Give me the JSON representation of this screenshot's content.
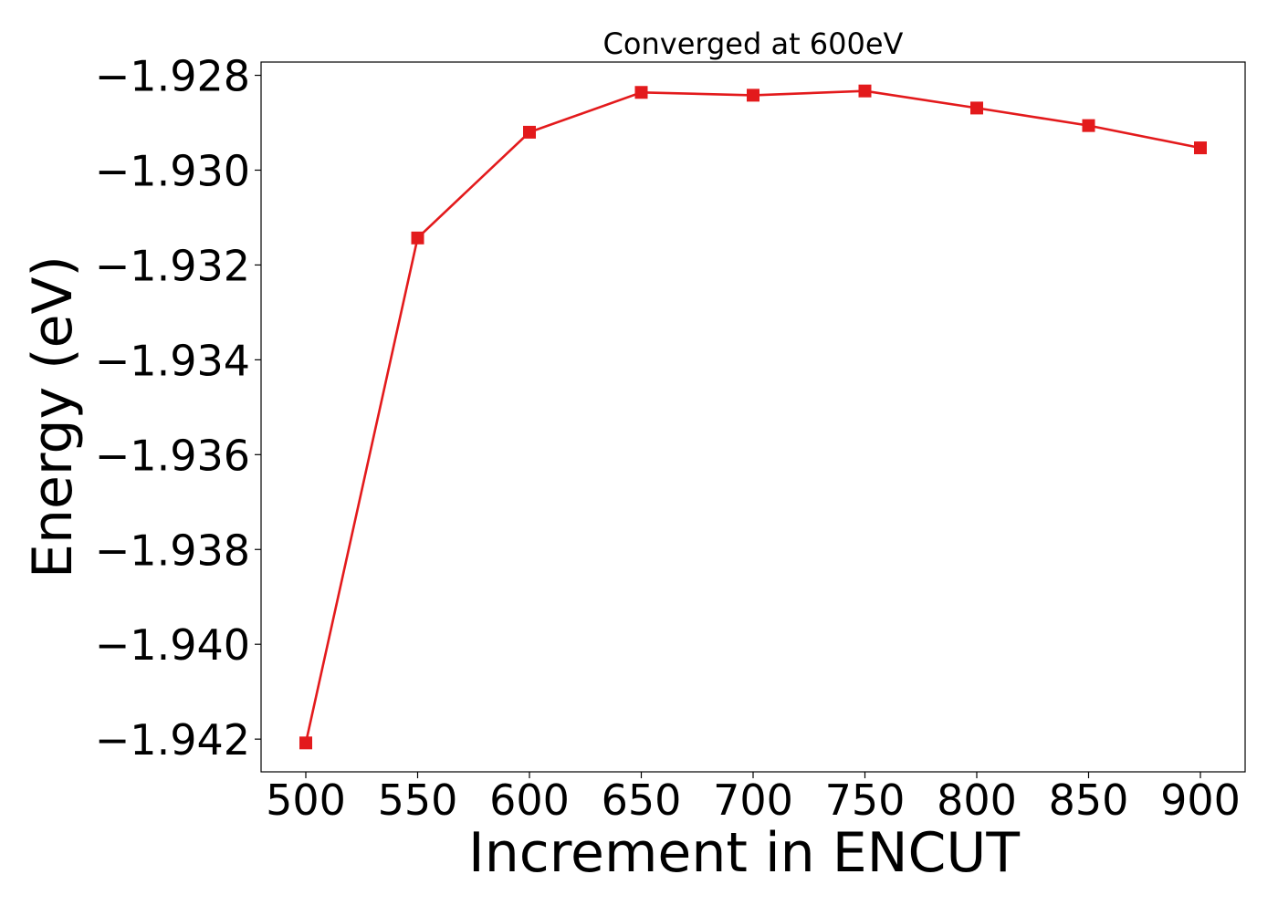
{
  "chart_data": {
    "type": "line",
    "title": "Converged at 600eV",
    "xlabel": "Increment in ENCUT",
    "ylabel": "Energy (eV)",
    "x": [
      500,
      550,
      600,
      650,
      700,
      750,
      800,
      850,
      900
    ],
    "series": [
      {
        "values": [
          -1.94208,
          -1.93143,
          -1.9292,
          -1.92836,
          -1.92842,
          -1.92833,
          -1.92869,
          -1.92906,
          -1.92953
        ]
      }
    ],
    "xticks": [
      500,
      550,
      600,
      650,
      700,
      750,
      800,
      850,
      900
    ],
    "xtick_labels": [
      "500",
      "550",
      "600",
      "650",
      "700",
      "750",
      "800",
      "850",
      "900"
    ],
    "yticks": [
      -1.928,
      -1.93,
      -1.932,
      -1.934,
      -1.936,
      -1.938,
      -1.94,
      -1.942
    ],
    "ytick_labels": [
      "−1.928",
      "−1.930",
      "−1.932",
      "−1.934",
      "−1.936",
      "−1.938",
      "−1.940",
      "−1.942"
    ],
    "xlim": [
      480,
      920
    ],
    "ylim": [
      -1.94269,
      -1.92772
    ],
    "grid": false,
    "marker": "square",
    "line_color": "#e31a1c",
    "marker_color": "#e31a1c"
  }
}
